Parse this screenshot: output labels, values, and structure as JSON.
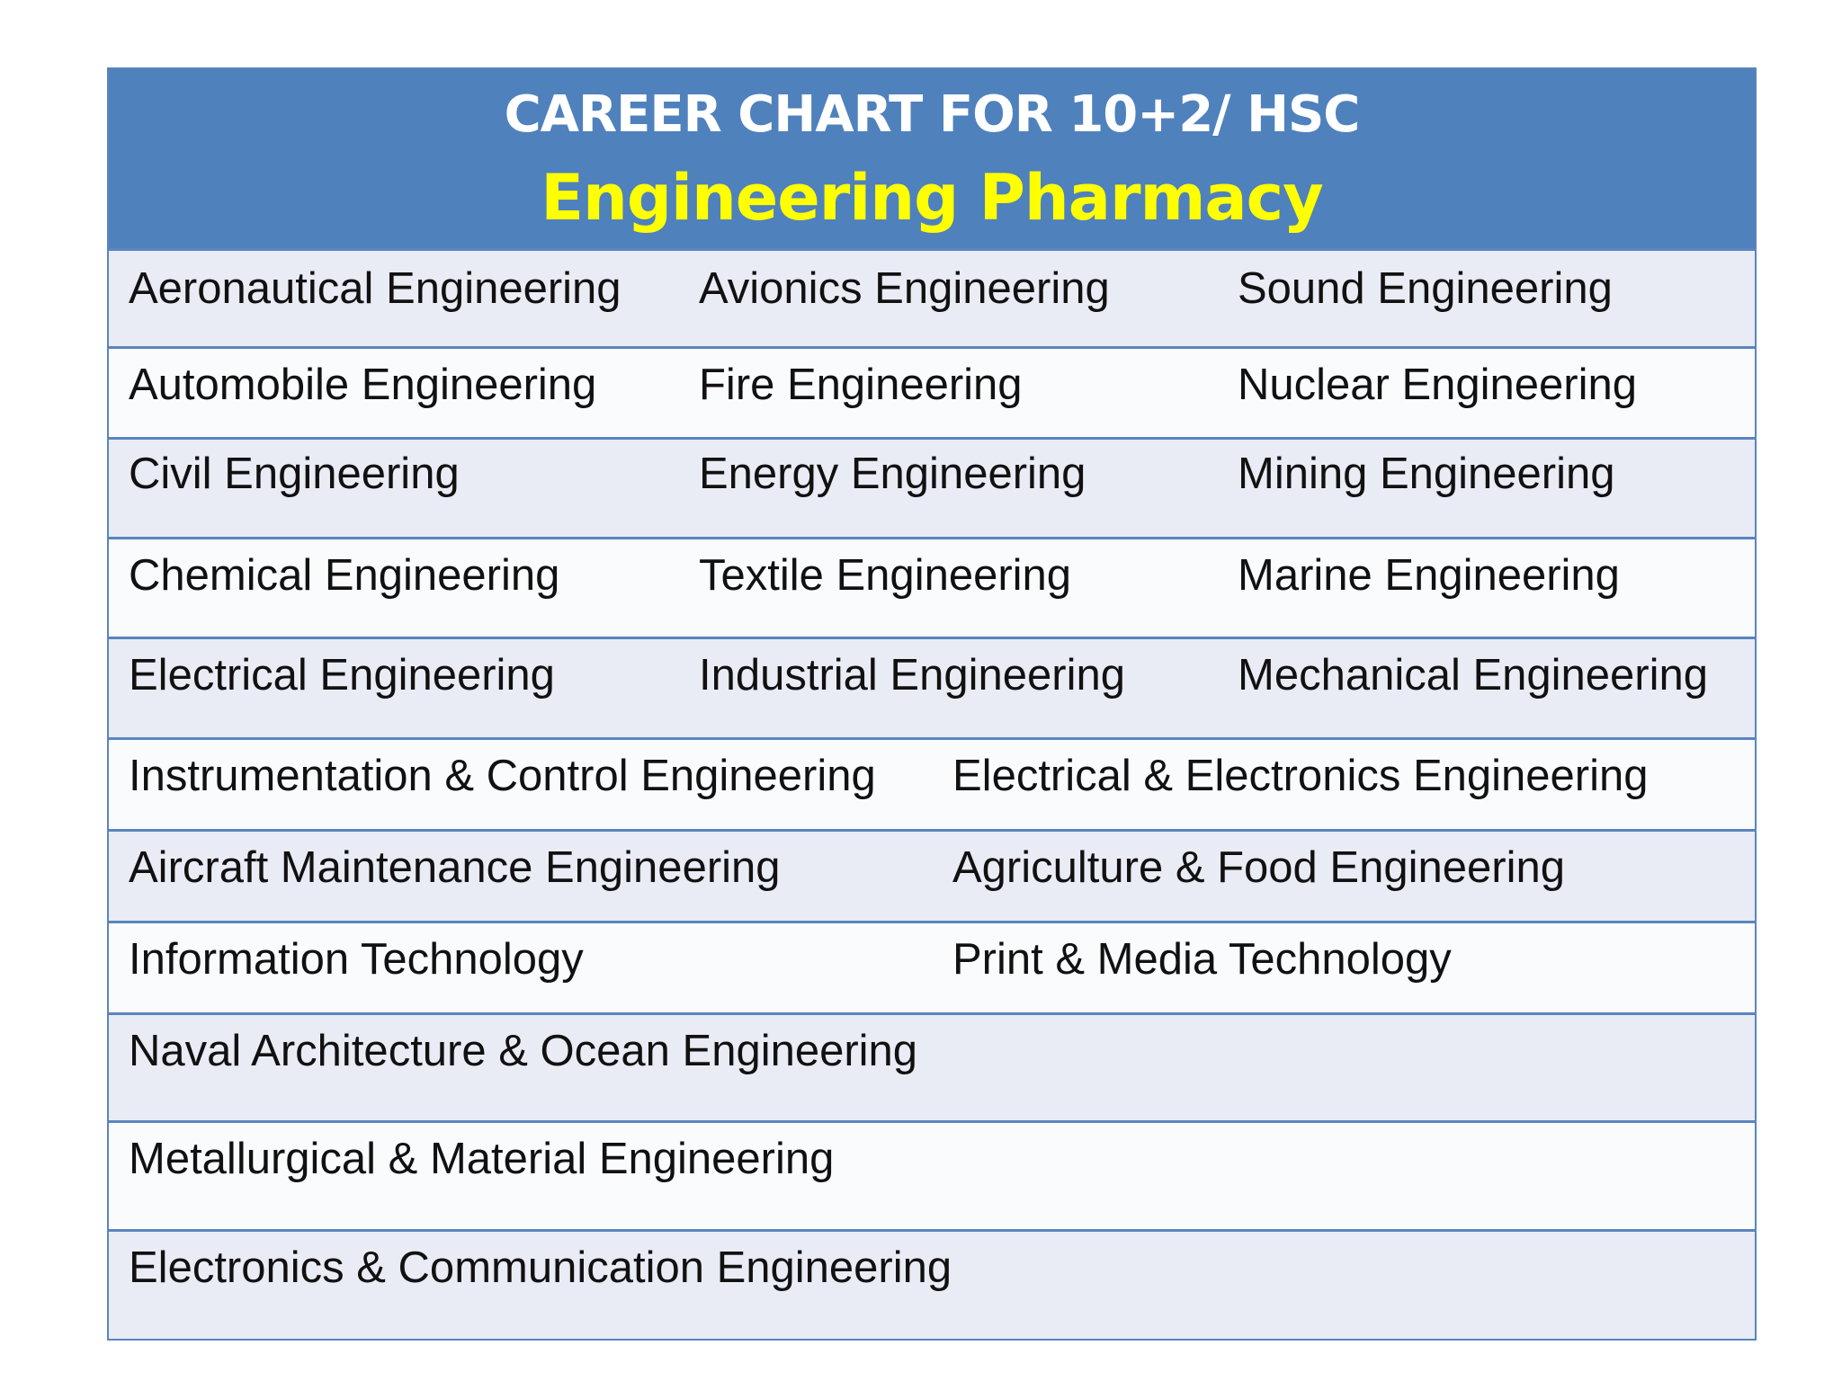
{
  "header": {
    "title": "CAREER CHART FOR 10+2/ HSC",
    "subtitle": "Engineering Pharmacy",
    "background_color": "#4f81bd",
    "subtitle_color": "#ffff00"
  },
  "rows": [
    [
      "Aeronautical Engineering",
      "Avionics Engineering",
      "Sound Engineering"
    ],
    [
      "Automobile Engineering",
      "Fire Engineering",
      "Nuclear Engineering"
    ],
    [
      "Civil Engineering",
      "Energy Engineering",
      "Mining Engineering"
    ],
    [
      "Chemical Engineering",
      "Textile Engineering",
      "Marine Engineering"
    ],
    [
      "Electrical Engineering",
      "Industrial Engineering",
      "Mechanical Engineering"
    ],
    [
      "Instrumentation & Control Engineering",
      "Electrical & Electronics Engineering"
    ],
    [
      "Aircraft Maintenance Engineering",
      "Agriculture & Food Engineering"
    ],
    [
      "Information Technology",
      "Print & Media Technology"
    ],
    [
      "Naval Architecture & Ocean Engineering"
    ],
    [
      "Metallurgical & Material Engineering"
    ],
    [
      "Electronics & Communication Engineering"
    ]
  ]
}
